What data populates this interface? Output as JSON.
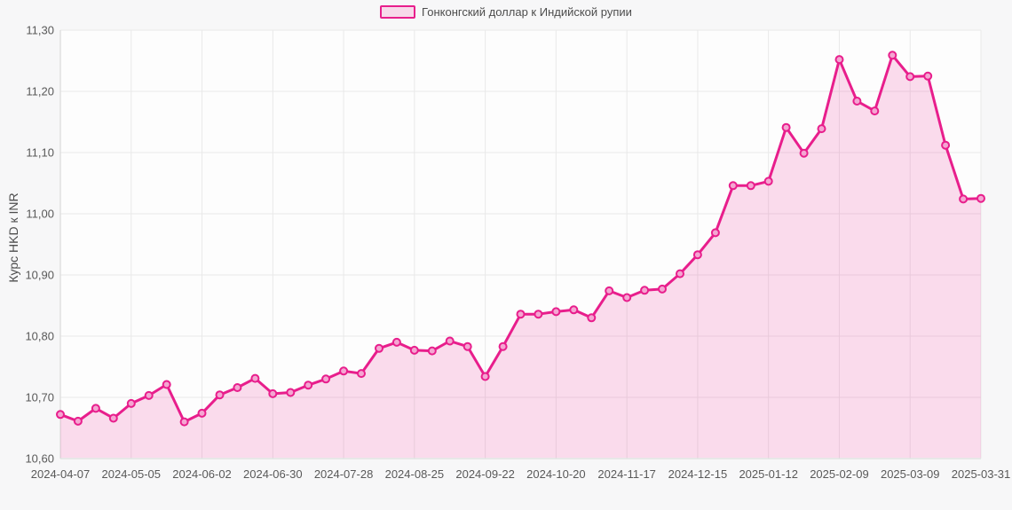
{
  "page": {
    "background": "#f7f7f8"
  },
  "legend": {
    "label": "Гонконгский доллар к Индийской рупии"
  },
  "y_axis_title": "Курс HKD к INR",
  "chart_data": {
    "type": "area",
    "title": "",
    "xlabel": "",
    "ylabel": "Курс HKD к INR",
    "ylim": [
      10.6,
      11.3
    ],
    "y_tick_step": 0.1,
    "y_tick_labels": [
      "10,60",
      "10,70",
      "10,80",
      "10,90",
      "11,00",
      "11,10",
      "11,20",
      "11,30"
    ],
    "grid": true,
    "legend_position": "top-center",
    "x_tick_every": 4,
    "x_tick_labels": [
      "2024-04-07",
      "2024-05-05",
      "2024-06-02",
      "2024-06-30",
      "2024-07-28",
      "2024-08-25",
      "2024-09-22",
      "2024-10-20",
      "2024-11-17",
      "2024-12-15",
      "2025-01-12",
      "2025-02-09",
      "2025-03-09",
      "2025-03-31"
    ],
    "series": [
      {
        "name": "Гонконгский доллар к Индийской рупии",
        "x": [
          "2024-04-07",
          "2024-04-14",
          "2024-04-21",
          "2024-04-28",
          "2024-05-05",
          "2024-05-12",
          "2024-05-19",
          "2024-05-26",
          "2024-06-02",
          "2024-06-09",
          "2024-06-16",
          "2024-06-23",
          "2024-06-30",
          "2024-07-07",
          "2024-07-14",
          "2024-07-21",
          "2024-07-28",
          "2024-08-04",
          "2024-08-11",
          "2024-08-18",
          "2024-08-25",
          "2024-09-01",
          "2024-09-08",
          "2024-09-15",
          "2024-09-22",
          "2024-09-29",
          "2024-10-06",
          "2024-10-13",
          "2024-10-20",
          "2024-10-27",
          "2024-11-03",
          "2024-11-10",
          "2024-11-17",
          "2024-11-24",
          "2024-12-01",
          "2024-12-08",
          "2024-12-15",
          "2024-12-22",
          "2024-12-29",
          "2025-01-05",
          "2025-01-12",
          "2025-01-19",
          "2025-01-26",
          "2025-02-02",
          "2025-02-09",
          "2025-02-16",
          "2025-02-23",
          "2025-03-02",
          "2025-03-09",
          "2025-03-16",
          "2025-03-23",
          "2025-03-30",
          "2025-03-31"
        ],
        "values": [
          10.672,
          10.661,
          10.682,
          10.666,
          10.69,
          10.703,
          10.721,
          10.66,
          10.674,
          10.704,
          10.716,
          10.731,
          10.706,
          10.708,
          10.72,
          10.73,
          10.743,
          10.739,
          10.78,
          10.79,
          10.777,
          10.776,
          10.792,
          10.783,
          10.734,
          10.783,
          10.836,
          10.836,
          10.84,
          10.843,
          10.83,
          10.874,
          10.863,
          10.875,
          10.877,
          10.902,
          10.933,
          10.969,
          11.046,
          11.046,
          11.053,
          11.141,
          11.099,
          11.139,
          11.252,
          11.184,
          11.168,
          11.259,
          11.224,
          11.225,
          11.112,
          11.024,
          11.025
        ]
      }
    ],
    "colors": {
      "line": "#e81e8c",
      "area_fill": "rgba(232,30,140,0.15)",
      "marker_fill": "#f4a6d2",
      "grid": "#e9e9e9",
      "axis": "#d4d4d4",
      "tick_text": "#595959",
      "plot_bg": "#fdfdfd"
    }
  }
}
